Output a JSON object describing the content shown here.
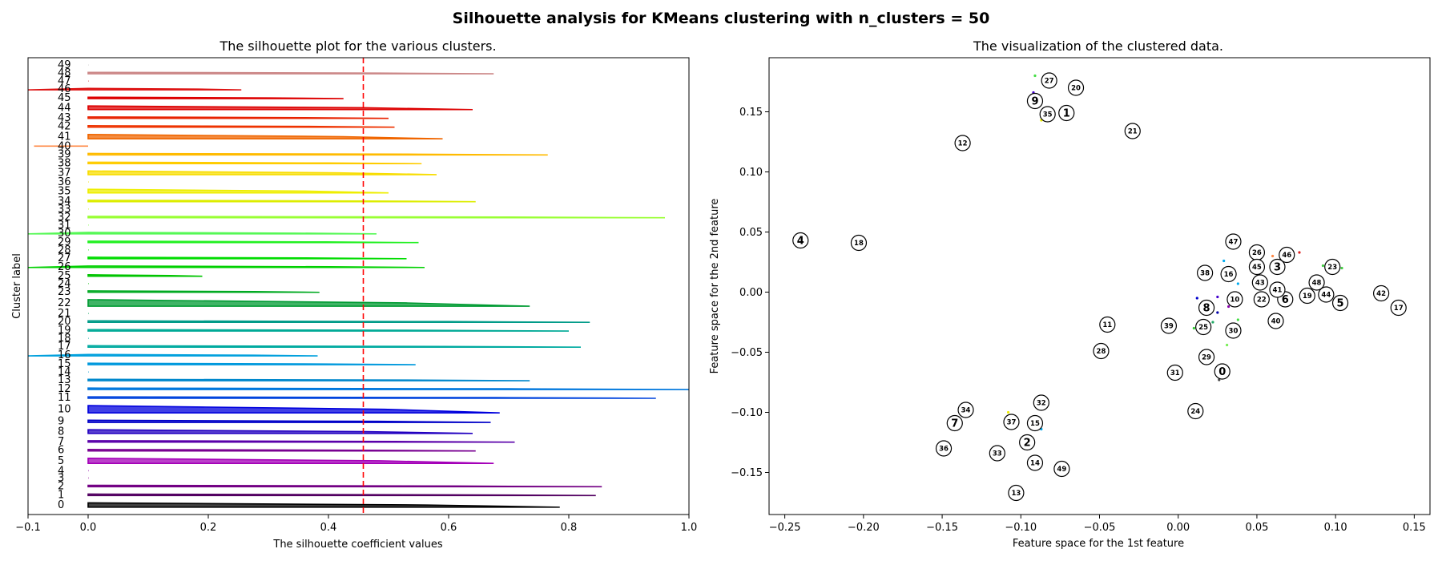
{
  "figure": {
    "title": "Silhouette analysis for KMeans clustering with n_clusters = 50"
  },
  "chart_data": [
    {
      "type": "bar",
      "title": "The silhouette plot for the various clusters.",
      "xlabel": "The silhouette coefficient values",
      "ylabel": "Cluster label",
      "xlim": [
        -0.1,
        1.0
      ],
      "xticks": [
        "−0.1",
        "0.0",
        "0.2",
        "0.4",
        "0.6",
        "0.8",
        "1.0"
      ],
      "xtick_values": [
        -0.1,
        0.0,
        0.2,
        0.4,
        0.6,
        0.8,
        1.0
      ],
      "average_line": 0.458,
      "average_line_color": "#ff0000",
      "grid": false,
      "clusters": [
        {
          "label": "0",
          "size": 6,
          "max": 0.785,
          "min": 0.0,
          "color": "#000000"
        },
        {
          "label": "1",
          "size": 2,
          "max": 0.845,
          "min": 0.0,
          "color": "#520061"
        },
        {
          "label": "2",
          "size": 2,
          "max": 0.855,
          "min": 0.0,
          "color": "#730084"
        },
        {
          "label": "3",
          "size": 0,
          "max": 0.0,
          "min": 0.0,
          "color": "#8e0096"
        },
        {
          "label": "4",
          "size": 0,
          "max": 0.0,
          "min": 0.0,
          "color": "#8f00a6"
        },
        {
          "label": "5",
          "size": 7,
          "max": 0.675,
          "min": 0.0,
          "color": "#a400b8"
        },
        {
          "label": "6",
          "size": 2,
          "max": 0.645,
          "min": 0.0,
          "color": "#790091"
        },
        {
          "label": "7",
          "size": 2,
          "max": 0.71,
          "min": 0.0,
          "color": "#5a00aa"
        },
        {
          "label": "8",
          "size": 5,
          "max": 0.64,
          "min": 0.0,
          "color": "#2200c0"
        },
        {
          "label": "9",
          "size": 3,
          "max": 0.67,
          "min": 0.0,
          "color": "#0000c8"
        },
        {
          "label": "10",
          "size": 10,
          "max": 0.685,
          "min": 0.0,
          "color": "#0000dd"
        },
        {
          "label": "11",
          "size": 2,
          "max": 0.945,
          "min": 0.0,
          "color": "#0044dd"
        },
        {
          "label": "12",
          "size": 2,
          "max": 1.0,
          "min": 0.0,
          "color": "#0077dd"
        },
        {
          "label": "13",
          "size": 2,
          "max": 0.735,
          "min": 0.0,
          "color": "#0088cc"
        },
        {
          "label": "14",
          "size": 0,
          "max": 0.0,
          "min": 0.0,
          "color": "#0095d0"
        },
        {
          "label": "15",
          "size": 2,
          "max": 0.545,
          "min": 0.0,
          "color": "#0099dd"
        },
        {
          "label": "16",
          "size": 2,
          "max": 0.382,
          "min": -0.1,
          "color": "#00a0dd"
        },
        {
          "label": "17",
          "size": 2,
          "max": 0.82,
          "min": 0.0,
          "color": "#00aaa0"
        },
        {
          "label": "18",
          "size": 0,
          "max": 0.0,
          "min": 0.0,
          "color": "#00aa9a"
        },
        {
          "label": "19",
          "size": 2,
          "max": 0.8,
          "min": 0.0,
          "color": "#00aa96"
        },
        {
          "label": "20",
          "size": 2,
          "max": 0.835,
          "min": 0.0,
          "color": "#009b88"
        },
        {
          "label": "21",
          "size": 0,
          "max": 0.0,
          "min": 0.0,
          "color": "#009f55"
        },
        {
          "label": "22",
          "size": 9,
          "max": 0.735,
          "min": 0.0,
          "color": "#009b33"
        },
        {
          "label": "23",
          "size": 2,
          "max": 0.385,
          "min": 0.0,
          "color": "#00aa22"
        },
        {
          "label": "24",
          "size": 0,
          "max": 0.0,
          "min": 0.0,
          "color": "#00b800"
        },
        {
          "label": "25",
          "size": 2,
          "max": 0.19,
          "min": 0.0,
          "color": "#00c400"
        },
        {
          "label": "26",
          "size": 2,
          "max": 0.56,
          "min": -0.1,
          "color": "#00d000"
        },
        {
          "label": "27",
          "size": 2,
          "max": 0.53,
          "min": 0.0,
          "color": "#00dc00"
        },
        {
          "label": "28",
          "size": 0,
          "max": 0.0,
          "min": 0.0,
          "color": "#00e800"
        },
        {
          "label": "29",
          "size": 2,
          "max": 0.55,
          "min": 0.0,
          "color": "#22f022"
        },
        {
          "label": "30",
          "size": 2,
          "max": 0.48,
          "min": -0.1,
          "color": "#55f855"
        },
        {
          "label": "31",
          "size": 0,
          "max": 0.0,
          "min": 0.0,
          "color": "#7dff40"
        },
        {
          "label": "32",
          "size": 2,
          "max": 0.96,
          "min": 0.0,
          "color": "#99ff33"
        },
        {
          "label": "33",
          "size": 0,
          "max": 0.0,
          "min": 0.0,
          "color": "#bbff00"
        },
        {
          "label": "34",
          "size": 2,
          "max": 0.645,
          "min": 0.0,
          "color": "#dded00"
        },
        {
          "label": "35",
          "size": 5,
          "max": 0.5,
          "min": 0.0,
          "color": "#eeee00"
        },
        {
          "label": "36",
          "size": 0,
          "max": 0.0,
          "min": 0.0,
          "color": "#f0e000"
        },
        {
          "label": "37",
          "size": 5,
          "max": 0.58,
          "min": 0.0,
          "color": "#f8dd00"
        },
        {
          "label": "38",
          "size": 2,
          "max": 0.555,
          "min": 0.0,
          "color": "#ffcc00"
        },
        {
          "label": "39",
          "size": 2,
          "max": 0.765,
          "min": 0.0,
          "color": "#ffbb00"
        },
        {
          "label": "40",
          "size": 0,
          "max": 0.0,
          "min": -0.09,
          "color": "#ff8844"
        },
        {
          "label": "41",
          "size": 6,
          "max": 0.59,
          "min": 0.0,
          "color": "#f06600"
        },
        {
          "label": "42",
          "size": 2,
          "max": 0.51,
          "min": 0.0,
          "color": "#ee3300"
        },
        {
          "label": "43",
          "size": 2,
          "max": 0.5,
          "min": 0.0,
          "color": "#e82200"
        },
        {
          "label": "44",
          "size": 5,
          "max": 0.64,
          "min": 0.0,
          "color": "#dd0000"
        },
        {
          "label": "45",
          "size": 2,
          "max": 0.425,
          "min": 0.0,
          "color": "#dd0000"
        },
        {
          "label": "46",
          "size": 2,
          "max": 0.255,
          "min": -0.1,
          "color": "#dd1111"
        },
        {
          "label": "47",
          "size": 0,
          "max": 0.0,
          "min": 0.0,
          "color": "#cc4444"
        },
        {
          "label": "48",
          "size": 2,
          "max": 0.675,
          "min": 0.0,
          "color": "#cc8888"
        },
        {
          "label": "49",
          "size": 0,
          "max": 0.0,
          "min": 0.0,
          "color": "#cccccc"
        }
      ]
    },
    {
      "type": "scatter",
      "title": "The visualization of the clustered data.",
      "xlabel": "Feature space for the 1st feature",
      "ylabel": "Feature space for the 2nd feature",
      "xlim": [
        -0.26,
        0.16
      ],
      "ylim": [
        -0.185,
        0.195
      ],
      "xticks": [
        "−0.25",
        "−0.20",
        "−0.15",
        "−0.10",
        "−0.05",
        "0.00",
        "0.05",
        "0.10",
        "0.15"
      ],
      "xtick_values": [
        -0.25,
        -0.2,
        -0.15,
        -0.1,
        -0.05,
        0.0,
        0.05,
        0.1,
        0.15
      ],
      "yticks": [
        "−0.15",
        "−0.10",
        "−0.05",
        "0.00",
        "0.05",
        "0.10",
        "0.15"
      ],
      "ytick_values": [
        -0.15,
        -0.1,
        -0.05,
        0.0,
        0.05,
        0.1,
        0.15
      ],
      "grid": false,
      "centers": [
        {
          "label": "0",
          "x": 0.028,
          "y": -0.066
        },
        {
          "label": "1",
          "x": -0.071,
          "y": 0.149
        },
        {
          "label": "2",
          "x": -0.096,
          "y": -0.125
        },
        {
          "label": "3",
          "x": 0.063,
          "y": 0.021
        },
        {
          "label": "4",
          "x": -0.24,
          "y": 0.043
        },
        {
          "label": "5",
          "x": 0.103,
          "y": -0.009
        },
        {
          "label": "6",
          "x": 0.068,
          "y": -0.006
        },
        {
          "label": "7",
          "x": -0.142,
          "y": -0.109
        },
        {
          "label": "8",
          "x": 0.018,
          "y": -0.013
        },
        {
          "label": "9",
          "x": -0.091,
          "y": 0.159
        },
        {
          "label": "10",
          "x": 0.036,
          "y": -0.006
        },
        {
          "label": "11",
          "x": -0.045,
          "y": -0.027
        },
        {
          "label": "12",
          "x": -0.137,
          "y": 0.124
        },
        {
          "label": "13",
          "x": -0.103,
          "y": -0.167
        },
        {
          "label": "14",
          "x": -0.091,
          "y": -0.142
        },
        {
          "label": "15",
          "x": -0.091,
          "y": -0.109
        },
        {
          "label": "16",
          "x": 0.032,
          "y": 0.015
        },
        {
          "label": "17",
          "x": 0.14,
          "y": -0.013
        },
        {
          "label": "18",
          "x": -0.203,
          "y": 0.041
        },
        {
          "label": "19",
          "x": 0.082,
          "y": -0.003
        },
        {
          "label": "20",
          "x": -0.065,
          "y": 0.17
        },
        {
          "label": "21",
          "x": -0.029,
          "y": 0.134
        },
        {
          "label": "22",
          "x": 0.053,
          "y": -0.006
        },
        {
          "label": "23",
          "x": 0.098,
          "y": 0.021
        },
        {
          "label": "24",
          "x": 0.011,
          "y": -0.099
        },
        {
          "label": "25",
          "x": 0.016,
          "y": -0.029
        },
        {
          "label": "26",
          "x": 0.05,
          "y": 0.033
        },
        {
          "label": "27",
          "x": -0.082,
          "y": 0.176
        },
        {
          "label": "28",
          "x": -0.049,
          "y": -0.049
        },
        {
          "label": "29",
          "x": 0.018,
          "y": -0.054
        },
        {
          "label": "30",
          "x": 0.035,
          "y": -0.032
        },
        {
          "label": "31",
          "x": -0.002,
          "y": -0.067
        },
        {
          "label": "32",
          "x": -0.087,
          "y": -0.092
        },
        {
          "label": "33",
          "x": -0.115,
          "y": -0.134
        },
        {
          "label": "34",
          "x": -0.135,
          "y": -0.098
        },
        {
          "label": "35",
          "x": -0.083,
          "y": 0.148
        },
        {
          "label": "36",
          "x": -0.149,
          "y": -0.13
        },
        {
          "label": "37",
          "x": -0.106,
          "y": -0.108
        },
        {
          "label": "38",
          "x": 0.017,
          "y": 0.016
        },
        {
          "label": "39",
          "x": -0.006,
          "y": -0.028
        },
        {
          "label": "40",
          "x": 0.062,
          "y": -0.024
        },
        {
          "label": "41",
          "x": 0.063,
          "y": 0.002
        },
        {
          "label": "42",
          "x": 0.129,
          "y": -0.001
        },
        {
          "label": "43",
          "x": 0.052,
          "y": 0.008
        },
        {
          "label": "44",
          "x": 0.094,
          "y": -0.002
        },
        {
          "label": "45",
          "x": 0.05,
          "y": 0.021
        },
        {
          "label": "46",
          "x": 0.069,
          "y": 0.031
        },
        {
          "label": "47",
          "x": 0.035,
          "y": 0.042
        },
        {
          "label": "48",
          "x": 0.088,
          "y": 0.008
        },
        {
          "label": "49",
          "x": -0.074,
          "y": -0.147
        }
      ],
      "points": [
        {
          "x": -0.091,
          "y": 0.18,
          "color": "#44dd44"
        },
        {
          "x": -0.092,
          "y": 0.166,
          "color": "#4400cc"
        },
        {
          "x": -0.087,
          "y": 0.143,
          "color": "#eeee00"
        },
        {
          "x": 0.077,
          "y": 0.033,
          "color": "#dd2222"
        },
        {
          "x": 0.06,
          "y": 0.03,
          "color": "#ff8844"
        },
        {
          "x": 0.092,
          "y": 0.022,
          "color": "#44cc44"
        },
        {
          "x": 0.104,
          "y": 0.02,
          "color": "#44cc44"
        },
        {
          "x": 0.029,
          "y": 0.026,
          "color": "#00aaee"
        },
        {
          "x": 0.038,
          "y": 0.007,
          "color": "#00aaee"
        },
        {
          "x": 0.012,
          "y": -0.005,
          "color": "#0000cc"
        },
        {
          "x": 0.025,
          "y": -0.004,
          "color": "#4400cc"
        },
        {
          "x": 0.032,
          "y": -0.012,
          "color": "#8800aa"
        },
        {
          "x": 0.025,
          "y": -0.017,
          "color": "#0000aa"
        },
        {
          "x": 0.038,
          "y": -0.023,
          "color": "#44dd44"
        },
        {
          "x": 0.022,
          "y": -0.025,
          "color": "#22aa66"
        },
        {
          "x": 0.01,
          "y": -0.03,
          "color": "#33cc33"
        },
        {
          "x": 0.031,
          "y": -0.044,
          "color": "#77ee55"
        },
        {
          "x": 0.026,
          "y": -0.073,
          "color": "#444444"
        },
        {
          "x": -0.108,
          "y": -0.1,
          "color": "#eeee00"
        },
        {
          "x": -0.087,
          "y": -0.114,
          "color": "#00aaee"
        },
        {
          "x": -0.094,
          "y": -0.145,
          "color": "#0000cc"
        }
      ]
    }
  ]
}
